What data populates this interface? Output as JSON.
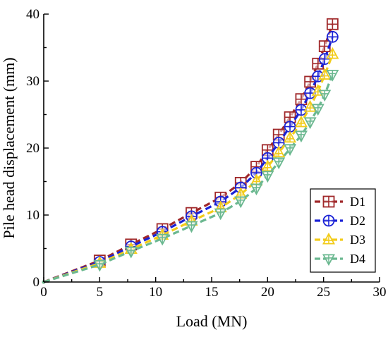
{
  "chart_data": {
    "type": "line",
    "xlabel": "Load (MN)",
    "ylabel": "Pile head displacement (mm)",
    "xlim": [
      0,
      30
    ],
    "ylim": [
      0,
      40
    ],
    "xticks": [
      0,
      5,
      10,
      15,
      20,
      25,
      30
    ],
    "yticks": [
      0,
      10,
      20,
      30,
      40
    ],
    "grid": false,
    "legend_position": "bottom-right",
    "series": [
      {
        "name": "D1",
        "color": "#a0282a",
        "marker": "square-cross",
        "x": [
          0,
          5.0,
          7.8,
          10.6,
          13.2,
          15.8,
          17.6,
          19.0,
          20.0,
          21.0,
          22.0,
          23.0,
          23.8,
          24.5,
          25.1,
          25.8
        ],
        "y": [
          0,
          3.2,
          5.6,
          7.9,
          10.3,
          12.6,
          14.8,
          17.2,
          19.7,
          22.0,
          24.6,
          27.3,
          29.9,
          32.6,
          35.2,
          38.5
        ]
      },
      {
        "name": "D2",
        "color": "#1a22d6",
        "marker": "circle-cross",
        "x": [
          0,
          5.0,
          7.8,
          10.6,
          13.2,
          15.8,
          17.6,
          19.0,
          20.0,
          21.0,
          22.0,
          23.0,
          23.8,
          24.5,
          25.1,
          25.8
        ],
        "y": [
          0,
          3.0,
          5.3,
          7.5,
          9.8,
          12.0,
          14.1,
          16.3,
          18.5,
          20.8,
          23.2,
          25.7,
          28.2,
          30.7,
          33.3,
          36.6
        ]
      },
      {
        "name": "D3",
        "color": "#f2cc1a",
        "marker": "triangle-up-cross",
        "x": [
          0,
          5.0,
          7.8,
          10.6,
          13.2,
          15.8,
          17.6,
          19.0,
          20.0,
          21.0,
          22.0,
          23.0,
          23.8,
          24.5,
          25.1,
          25.8
        ],
        "y": [
          0,
          2.8,
          4.9,
          7.0,
          9.1,
          11.1,
          13.1,
          15.1,
          17.2,
          19.3,
          21.5,
          23.8,
          26.1,
          28.5,
          30.9,
          34.0
        ]
      },
      {
        "name": "D4",
        "color": "#6bb890",
        "marker": "triangle-down-cross",
        "x": [
          0,
          5.0,
          7.8,
          10.6,
          13.2,
          15.8,
          17.6,
          19.0,
          20.0,
          21.0,
          22.0,
          23.0,
          23.8,
          24.5,
          25.1,
          25.8
        ],
        "y": [
          0,
          2.6,
          4.6,
          6.5,
          8.4,
          10.3,
          12.1,
          14.0,
          15.9,
          17.9,
          19.9,
          21.9,
          23.9,
          25.9,
          28.0,
          31.0
        ]
      }
    ]
  }
}
